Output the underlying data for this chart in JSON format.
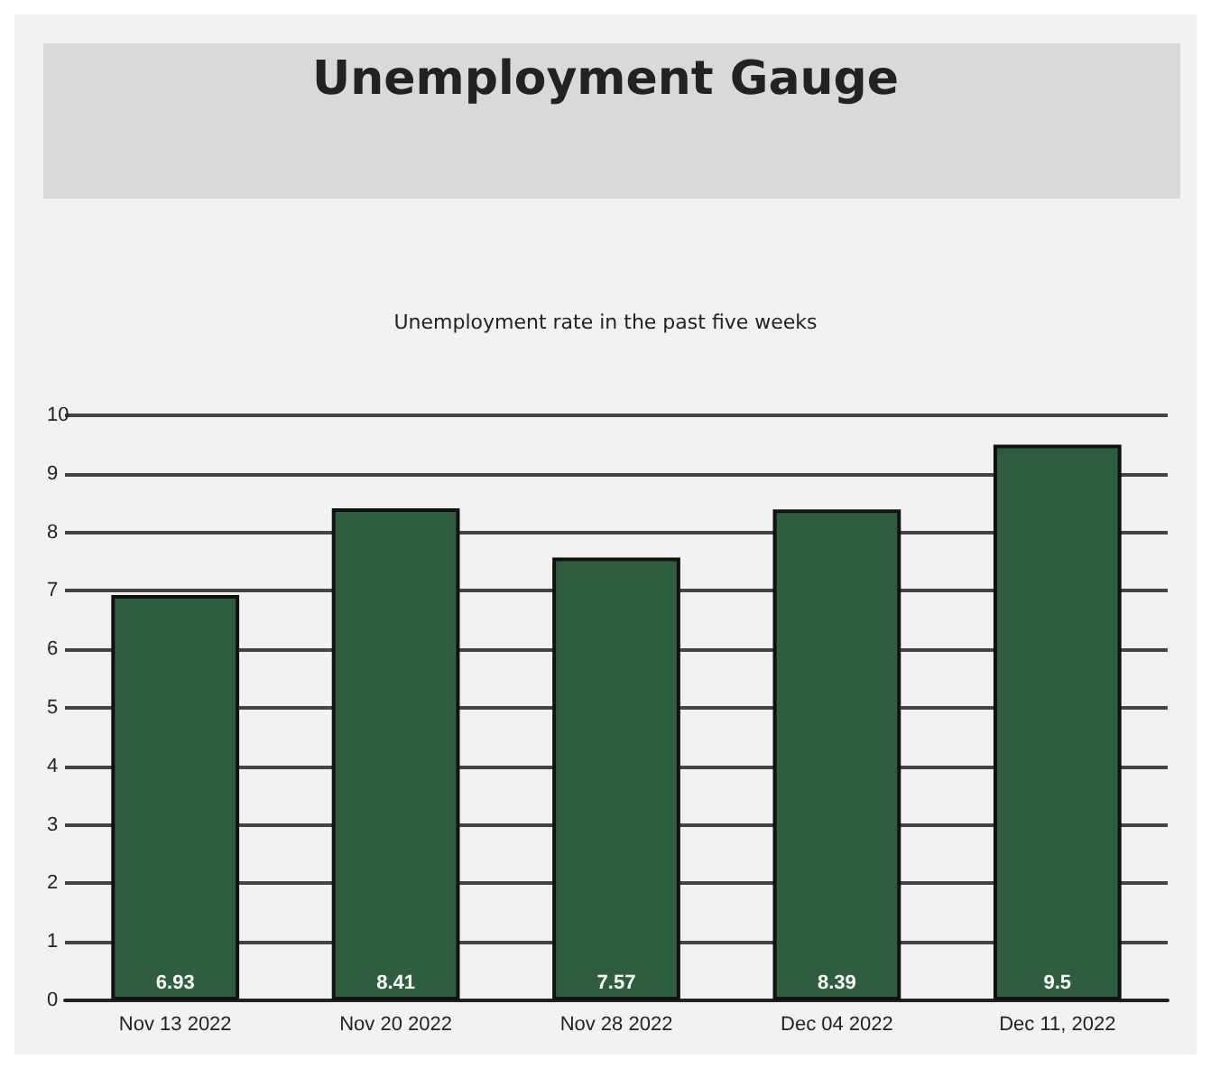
{
  "chart_data": {
    "type": "bar",
    "title": "Unemployment Gauge",
    "subtitle": "Unemployment rate in the past five weeks",
    "categories": [
      "Nov 13 2022",
      "Nov 20 2022",
      "Nov 28 2022",
      "Dec 04 2022",
      "Dec 11, 2022"
    ],
    "values": [
      6.93,
      8.41,
      7.57,
      8.39,
      9.5
    ],
    "color": "#2f5e3f",
    "ylim": [
      0,
      10
    ],
    "yticks": [
      0,
      1,
      2,
      3,
      4,
      5,
      6,
      7,
      8,
      9,
      10
    ],
    "grid": "y",
    "data_labels": true
  }
}
